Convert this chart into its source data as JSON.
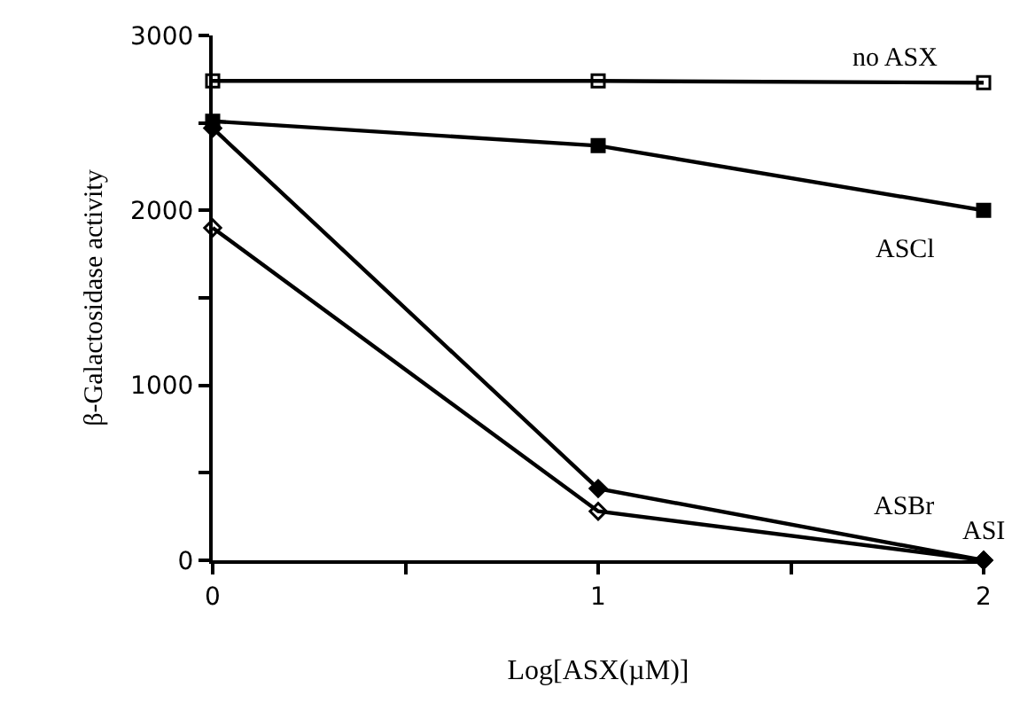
{
  "chart_data": {
    "type": "line",
    "xlabel": "Log[ASX(µM)]",
    "ylabel": "β-Galactosidase activity",
    "x": [
      0,
      1,
      2
    ],
    "xlim": [
      0,
      2
    ],
    "xticks": [
      0,
      {
        "value": 0.5,
        "label": null
      },
      1,
      {
        "value": 1.5,
        "label": null
      },
      2
    ],
    "ylim": [
      0,
      3000
    ],
    "yticks": [
      0,
      {
        "value": 500,
        "label": null
      },
      1000,
      {
        "value": 1500,
        "label": null
      },
      2000,
      {
        "value": 2500,
        "label": null
      },
      3000
    ],
    "legend": false,
    "line_style": "solid",
    "series": [
      {
        "name": "no ASX",
        "color": "#000000",
        "marker": "square-open",
        "values": [
          2740,
          2740,
          2730
        ]
      },
      {
        "name": "ASCl",
        "color": "#000000",
        "marker": "square",
        "values": [
          2510,
          2370,
          2000
        ]
      },
      {
        "name": "ASBr",
        "color": "#000000",
        "marker": "diamond",
        "values": [
          2470,
          410,
          0
        ]
      },
      {
        "name": "ASI",
        "color": "#000000",
        "marker": "diamond-open",
        "values": [
          1900,
          280,
          0
        ]
      }
    ]
  }
}
